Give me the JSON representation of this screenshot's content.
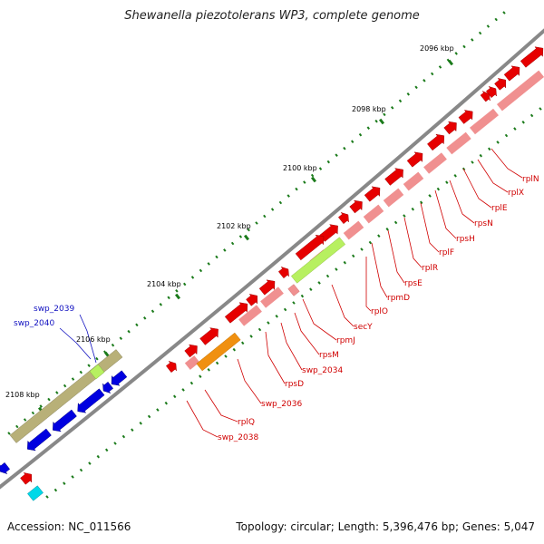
{
  "title": "Shewanella piezotolerans WP3, complete genome",
  "footer": {
    "accession": "Accession: NC_011566",
    "summary": "Topology: circular; Length: 5,396,476 bp; Genes: 5,047"
  },
  "colors": {
    "forward_gene": "#e60000",
    "reverse_gene": "#0000e0",
    "rrna_strip": "#f09090",
    "highlight_green": "#b7f060",
    "highlight_orange": "#f09010",
    "khaki_strip": "#b8b078",
    "tick_green": "#1a7a1a",
    "backbone": "#888888",
    "cyan_feature": "#00d8e8"
  },
  "kbp_ticks": [
    "2096 kbp",
    "2098 kbp",
    "2100 kbp",
    "2102 kbp",
    "2104 kbp",
    "2106 kbp",
    "2108 kbp"
  ],
  "gene_labels_red": [
    "rplN",
    "rplX",
    "rplE",
    "rpsN",
    "rpsH",
    "rplF",
    "rplR",
    "rpsE",
    "rpmD",
    "rplO",
    "secY",
    "rpmJ",
    "rpsM",
    "swp_2034",
    "rpsD",
    "swp_2036",
    "rplQ",
    "swp_2038"
  ],
  "gene_labels_blue": [
    "swp_2039",
    "swp_2040"
  ]
}
